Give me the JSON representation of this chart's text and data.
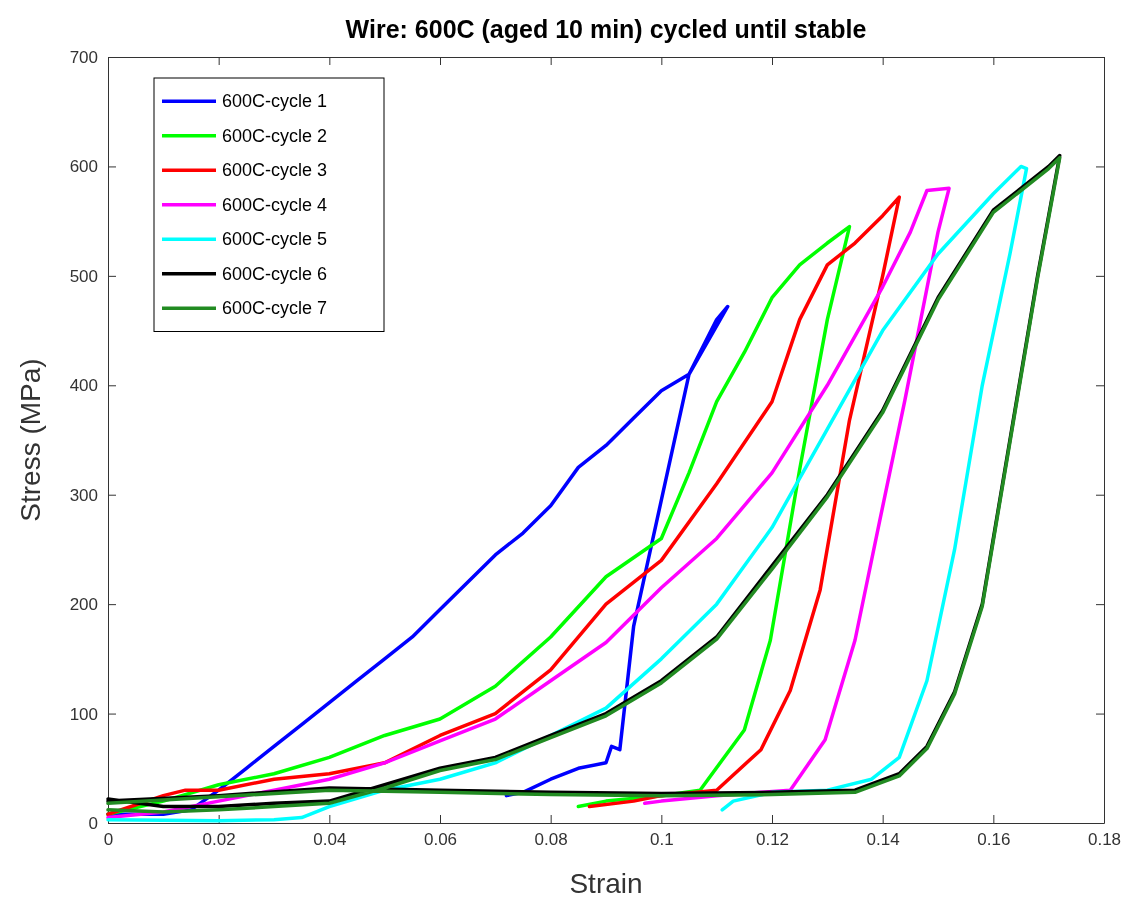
{
  "chart_data": {
    "type": "line",
    "title": "Wire: 600C (aged 10 min) cycled until stable",
    "xlabel": "Strain",
    "ylabel": "Stress (MPa)",
    "xlim": [
      0,
      0.18
    ],
    "ylim": [
      0,
      700
    ],
    "xticks": [
      0,
      0.02,
      0.04,
      0.06,
      0.08,
      0.1,
      0.12,
      0.14,
      0.16,
      0.18
    ],
    "yticks": [
      0,
      100,
      200,
      300,
      400,
      500,
      600,
      700
    ],
    "grid": false,
    "legend": "top left",
    "marker": "none",
    "line_style": "solid",
    "series": [
      {
        "name": "600C-cycle 1",
        "color": "#0000ff",
        "x": [
          0,
          0.01,
          0.015,
          0.02,
          0.025,
          0.03,
          0.035,
          0.04,
          0.045,
          0.05,
          0.055,
          0.06,
          0.065,
          0.07,
          0.075,
          0.08,
          0.085,
          0.09,
          0.095,
          0.1,
          0.105,
          0.11,
          0.112,
          0.105,
          0.1,
          0.095,
          0.0925,
          0.091,
          0.09,
          0.085,
          0.08,
          0.075,
          0.072
        ],
        "values": [
          8,
          8,
          12,
          30,
          50,
          70,
          90,
          110,
          130,
          150,
          170,
          195,
          220,
          245,
          265,
          290,
          325,
          345,
          370,
          395,
          410,
          460,
          472,
          410,
          295,
          180,
          67,
          70,
          55,
          50,
          40,
          28,
          25
        ]
      },
      {
        "name": "600C-cycle 2",
        "color": "#00ff00",
        "x": [
          0,
          0.01,
          0.02,
          0.03,
          0.04,
          0.05,
          0.06,
          0.07,
          0.08,
          0.09,
          0.1,
          0.105,
          0.11,
          0.115,
          0.12,
          0.125,
          0.13,
          0.134,
          0.13,
          0.125,
          0.1197,
          0.115,
          0.107,
          0.1,
          0.09,
          0.085
        ],
        "values": [
          8,
          20,
          35,
          45,
          60,
          80,
          95,
          125,
          170,
          225,
          260,
          320,
          385,
          430,
          480,
          510,
          530,
          545,
          460,
          323,
          167,
          85,
          30,
          25,
          20,
          15
        ]
      },
      {
        "name": "600C-cycle 3",
        "color": "#ff0000",
        "x": [
          0,
          0.01,
          0.014,
          0.02,
          0.03,
          0.04,
          0.05,
          0.06,
          0.07,
          0.08,
          0.09,
          0.1,
          0.11,
          0.12,
          0.125,
          0.13,
          0.135,
          0.14,
          0.143,
          0.14,
          0.134,
          0.1287,
          0.1233,
          0.118,
          0.11,
          0.1,
          0.095,
          0.087
        ],
        "values": [
          8,
          25,
          30,
          30,
          40,
          45,
          55,
          80,
          100,
          140,
          200,
          240,
          310,
          385,
          460,
          510,
          530,
          555,
          572,
          500,
          368,
          213,
          121,
          67,
          30,
          25,
          20,
          15
        ]
      },
      {
        "name": "600C-cycle 4",
        "color": "#ff00ff",
        "x": [
          0,
          0.01,
          0.02,
          0.03,
          0.04,
          0.05,
          0.06,
          0.07,
          0.08,
          0.09,
          0.1,
          0.11,
          0.12,
          0.13,
          0.14,
          0.145,
          0.148,
          0.152,
          0.15,
          0.144,
          0.1395,
          0.135,
          0.1296,
          0.1233,
          0.11,
          0.1,
          0.097
        ],
        "values": [
          5,
          10,
          20,
          30,
          40,
          55,
          75,
          95,
          130,
          165,
          215,
          260,
          320,
          400,
          490,
          540,
          578,
          580,
          540,
          386,
          277,
          167,
          76,
          30,
          25,
          20,
          18
        ]
      },
      {
        "name": "600C-cycle 5",
        "color": "#00ffff",
        "x": [
          0,
          0.02,
          0.03,
          0.035,
          0.04,
          0.05,
          0.06,
          0.07,
          0.08,
          0.09,
          0.1,
          0.11,
          0.12,
          0.13,
          0.14,
          0.15,
          0.16,
          0.165,
          0.166,
          0.163,
          0.158,
          0.153,
          0.148,
          0.143,
          0.138,
          0.13,
          0.12,
          0.113,
          0.111
        ],
        "values": [
          3,
          2,
          3,
          5,
          15,
          30,
          40,
          55,
          80,
          105,
          150,
          200,
          270,
          360,
          450,
          520,
          575,
          600,
          598,
          520,
          400,
          250,
          130,
          60,
          40,
          30,
          28,
          20,
          12
        ]
      },
      {
        "name": "600C-cycle 6",
        "color": "#000000",
        "x": [
          0,
          0.01,
          0.02,
          0.03,
          0.04,
          0.05,
          0.06,
          0.07,
          0.08,
          0.09,
          0.1,
          0.11,
          0.12,
          0.13,
          0.14,
          0.15,
          0.16,
          0.17,
          0.172,
          0.168,
          0.163,
          0.158,
          0.153,
          0.148,
          0.143,
          0.135,
          0.12,
          0.1,
          0.08,
          0.06,
          0.04,
          0.02,
          0
        ],
        "values": [
          22,
          15,
          15,
          18,
          20,
          35,
          50,
          60,
          80,
          100,
          130,
          170,
          235,
          300,
          377,
          480,
          560,
          600,
          610,
          500,
          350,
          200,
          120,
          70,
          45,
          30,
          28,
          27,
          28,
          30,
          32,
          25,
          20
        ]
      },
      {
        "name": "600C-cycle 7",
        "color": "#228b22",
        "x": [
          0,
          0.01,
          0.02,
          0.03,
          0.04,
          0.05,
          0.06,
          0.07,
          0.08,
          0.09,
          0.1,
          0.11,
          0.12,
          0.13,
          0.14,
          0.15,
          0.16,
          0.17,
          0.172,
          0.168,
          0.163,
          0.158,
          0.153,
          0.148,
          0.143,
          0.135,
          0.12,
          0.1,
          0.08,
          0.06,
          0.04,
          0.02,
          0
        ],
        "values": [
          12,
          10,
          12,
          15,
          18,
          32,
          48,
          58,
          78,
          98,
          128,
          168,
          232,
          298,
          375,
          478,
          558,
          598,
          608,
          498,
          348,
          198,
          118,
          68,
          43,
          28,
          26,
          25,
          26,
          28,
          30,
          24,
          18
        ]
      }
    ]
  }
}
